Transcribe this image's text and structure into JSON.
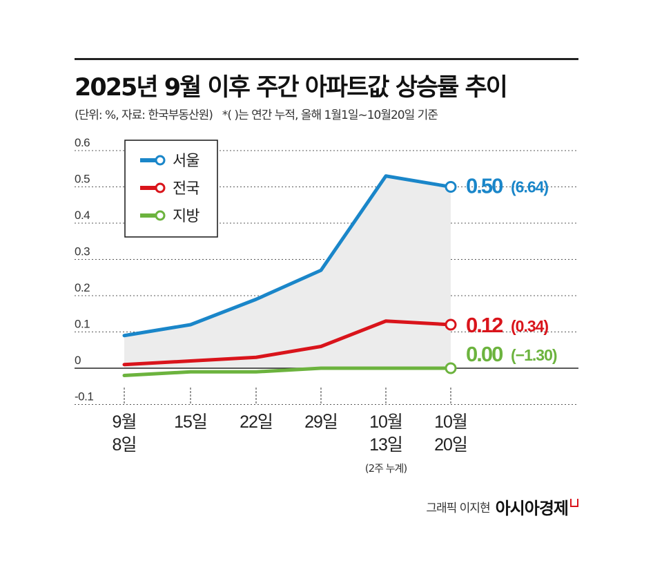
{
  "title": "2025년 9월 이후 주간 아파트값 상승률 추이",
  "subtitle": "(단위: %, 자료: 한국부동산원)",
  "note": "*(  )는 연간 누적, 올해 1월1일~10월20일 기준",
  "credit": {
    "byline": "그래픽 이지현",
    "brand": "아시아경제"
  },
  "chart_data": {
    "type": "line",
    "categories": [
      [
        "9월",
        "8일"
      ],
      [
        "15일"
      ],
      [
        "22일"
      ],
      [
        "29일"
      ],
      [
        "10월",
        "13일"
      ],
      [
        "10월",
        "20일"
      ]
    ],
    "category_notes": [
      "",
      "",
      "",
      "",
      "(2주 누계)",
      ""
    ],
    "ylim": [
      -0.1,
      0.6
    ],
    "yticks": [
      "-0.1",
      "0",
      "0.1",
      "0.2",
      "0.3",
      "0.4",
      "0.5",
      "0.6"
    ],
    "grid": true,
    "legend_position": "top-left",
    "series": [
      {
        "name": "서울",
        "color": "#1a86c9",
        "values": [
          0.09,
          0.12,
          0.19,
          0.27,
          0.53,
          0.5
        ],
        "end_label": "0.50",
        "end_cumulative": "(6.64)",
        "filled": true
      },
      {
        "name": "전국",
        "color": "#d9141b",
        "values": [
          0.01,
          0.02,
          0.03,
          0.06,
          0.13,
          0.12
        ],
        "end_label": "0.12",
        "end_cumulative": "(0.34)"
      },
      {
        "name": "지방",
        "color": "#6cb33e",
        "values": [
          -0.02,
          -0.01,
          -0.01,
          0.0,
          0.0,
          0.0
        ],
        "end_label": "0.00",
        "end_cumulative": "(−1.30)"
      }
    ]
  }
}
